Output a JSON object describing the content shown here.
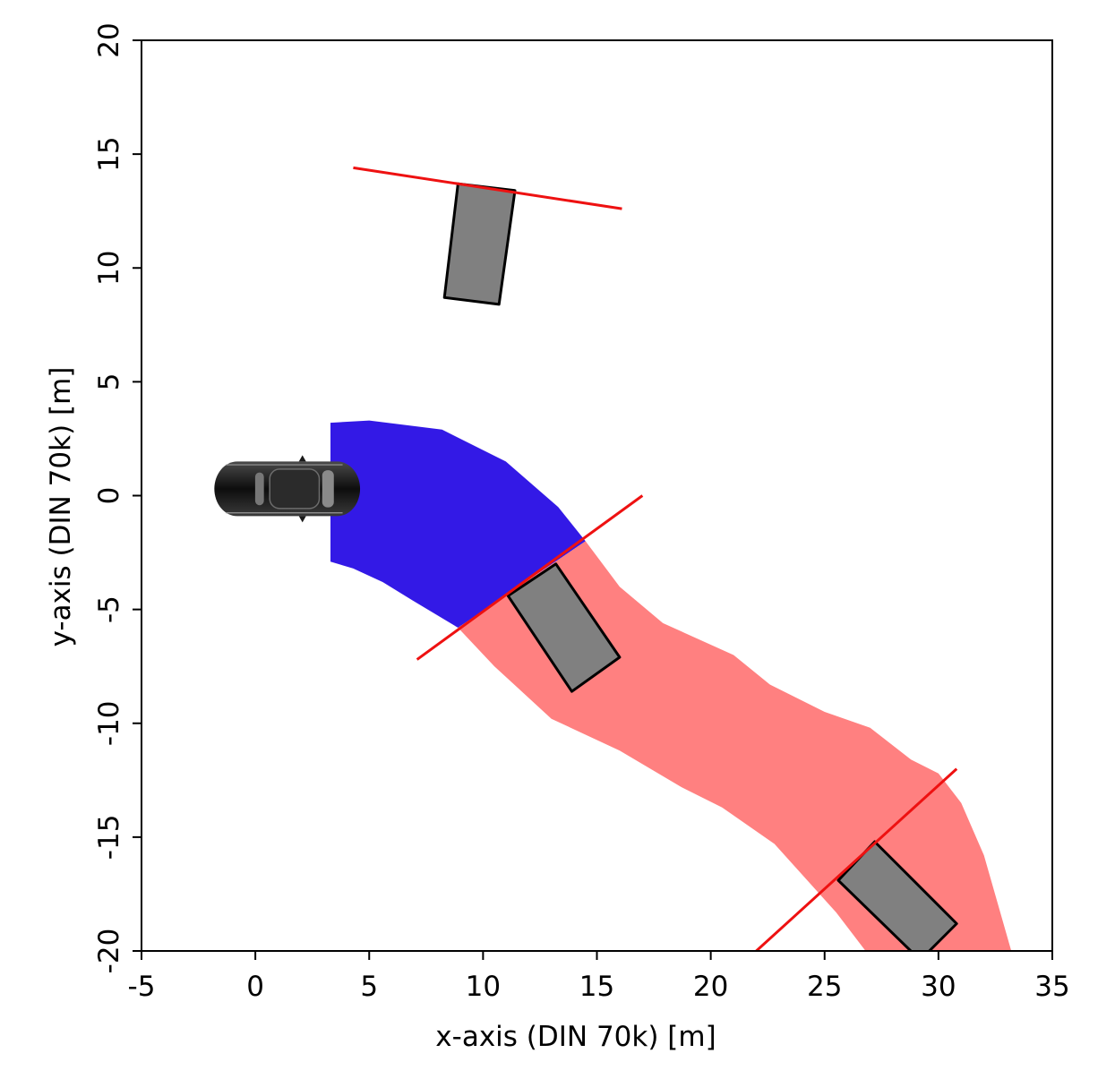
{
  "chart_data": {
    "type": "scatter",
    "title": "",
    "xlabel": "x-axis (DIN 70k) [m]",
    "ylabel": "y-axis (DIN 70k) [m]",
    "xlim": [
      -5,
      35
    ],
    "ylim": [
      -20,
      20
    ],
    "x_ticks": [
      -5,
      0,
      5,
      10,
      15,
      20,
      25,
      30,
      35
    ],
    "y_ticks": [
      -20,
      -15,
      -10,
      -5,
      0,
      5,
      10,
      15,
      20
    ],
    "x_tick_labels": [
      "-5",
      "0",
      "5",
      "10",
      "15",
      "20",
      "25",
      "30",
      "35"
    ],
    "y_tick_labels": [
      "-20",
      "-15",
      "-10",
      "-5",
      "0",
      "5",
      "10",
      "15",
      "20"
    ],
    "grid": false,
    "colors": {
      "ego_region": "#3319e6",
      "predicted_region": "#ff8080",
      "gate_line": "#ee1111",
      "obstacle_fill": "#808080",
      "obstacle_edge": "#000000",
      "ego_vehicle": "#1a1a1a"
    },
    "ego_vehicle": {
      "icon": "car-top-view-icon",
      "center": [
        1.4,
        0.3
      ],
      "length": 6.4,
      "width": 2.4
    },
    "blue_region": [
      [
        3.3,
        3.2
      ],
      [
        5.0,
        3.3
      ],
      [
        8.2,
        2.9
      ],
      [
        11.0,
        1.5
      ],
      [
        13.3,
        -0.5
      ],
      [
        14.5,
        -2.0
      ],
      [
        8.9,
        -5.8
      ],
      [
        6.9,
        -4.6
      ],
      [
        5.6,
        -3.8
      ],
      [
        4.3,
        -3.2
      ],
      [
        3.3,
        -2.9
      ]
    ],
    "red_region": [
      [
        14.5,
        -2.0
      ],
      [
        16.0,
        -4.0
      ],
      [
        17.9,
        -5.6
      ],
      [
        21.0,
        -7.0
      ],
      [
        22.6,
        -8.3
      ],
      [
        25.0,
        -9.5
      ],
      [
        27.0,
        -10.2
      ],
      [
        28.8,
        -11.6
      ],
      [
        30.0,
        -12.2
      ],
      [
        31.0,
        -13.5
      ],
      [
        32.0,
        -15.8
      ],
      [
        33.2,
        -20.0
      ],
      [
        26.8,
        -20.0
      ],
      [
        25.5,
        -18.3
      ],
      [
        22.8,
        -15.3
      ],
      [
        20.5,
        -13.7
      ],
      [
        18.7,
        -12.8
      ],
      [
        16.0,
        -11.2
      ],
      [
        13.0,
        -9.8
      ],
      [
        10.5,
        -7.5
      ],
      [
        8.9,
        -5.8
      ]
    ],
    "gate_lines": [
      {
        "from": [
          4.3,
          14.4
        ],
        "to": [
          16.1,
          12.6
        ]
      },
      {
        "from": [
          7.1,
          -7.2
        ],
        "to": [
          17.0,
          0.0
        ]
      },
      {
        "from": [
          22.0,
          -20.0
        ],
        "to": [
          30.8,
          -12.0
        ]
      }
    ],
    "obstacles": [
      {
        "corners": [
          [
            8.3,
            8.7
          ],
          [
            10.7,
            8.4
          ],
          [
            11.4,
            13.4
          ],
          [
            8.9,
            13.7
          ]
        ]
      },
      {
        "corners": [
          [
            11.1,
            -4.4
          ],
          [
            13.2,
            -3.0
          ],
          [
            16.0,
            -7.1
          ],
          [
            13.9,
            -8.6
          ]
        ]
      },
      {
        "corners": [
          [
            25.6,
            -16.9
          ],
          [
            27.2,
            -15.2
          ],
          [
            30.8,
            -18.8
          ],
          [
            29.2,
            -20.4
          ]
        ]
      }
    ]
  }
}
